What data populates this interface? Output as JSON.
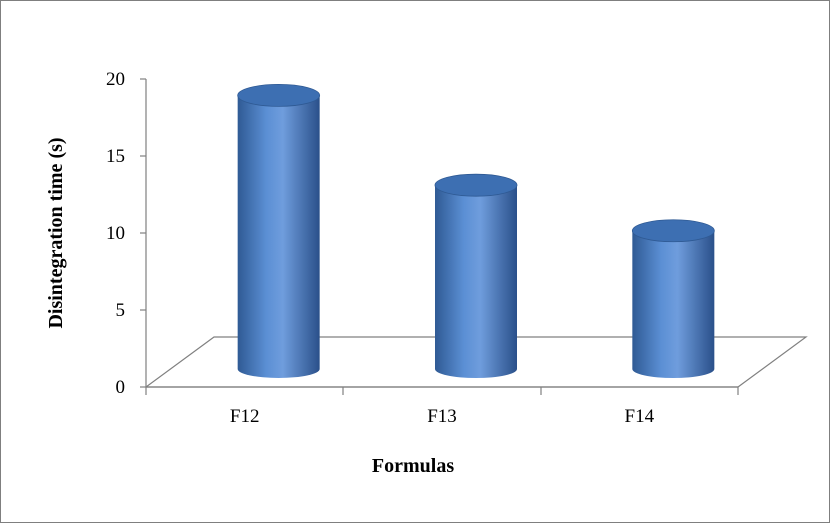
{
  "chart_data": {
    "type": "bar",
    "style": "3d-cylinder",
    "categories": [
      "F12",
      "F13",
      "F14"
    ],
    "values": [
      19.2,
      12.9,
      9.7
    ],
    "title": "",
    "xlabel": "Formulas",
    "ylabel": "Disintegration time (s)",
    "ylim": [
      0,
      20
    ],
    "yticks": [
      0,
      5,
      10,
      15,
      20
    ],
    "grid": false,
    "legend": "none",
    "colors": {
      "bar_fill": "#4a7ec4",
      "bar_dark": "#2f5a94",
      "bar_light": "#7aa6e0",
      "bar_top": "#3d6fb2",
      "axis": "#808080"
    }
  }
}
